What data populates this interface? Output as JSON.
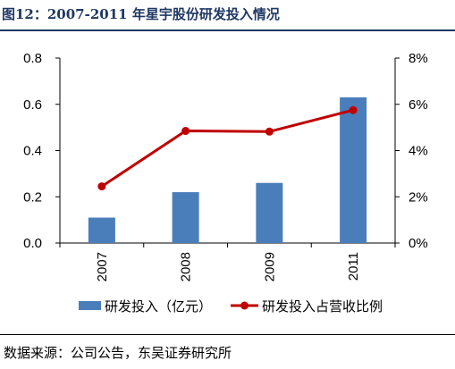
{
  "header": {
    "title": "图12：2007-2011 年星宇股份研发投入情况"
  },
  "footer": {
    "source": "数据来源：公司公告，东吴证券研究所"
  },
  "colors": {
    "bar": "#4a7ebb",
    "line": "#c00000",
    "title": "#1f3864"
  },
  "chart_data": {
    "type": "bar",
    "categories": [
      "2007",
      "2008",
      "2009",
      "2011"
    ],
    "ylim": [
      0,
      0.8
    ],
    "yticks": [
      "0.0",
      "0.2",
      "0.4",
      "0.6",
      "0.8"
    ],
    "y2lim": [
      0,
      8
    ],
    "y2ticks": [
      "0%",
      "2%",
      "4%",
      "6%",
      "8%"
    ],
    "grid": false,
    "legend_position": "bottom",
    "series": [
      {
        "name": "研发投入（亿元）",
        "type": "bar",
        "axis": "left",
        "values": [
          0.11,
          0.22,
          0.26,
          0.63
        ]
      },
      {
        "name": "研发投入占营收比例",
        "type": "line",
        "axis": "right",
        "values": [
          2.45,
          4.85,
          4.82,
          5.75
        ]
      }
    ]
  }
}
